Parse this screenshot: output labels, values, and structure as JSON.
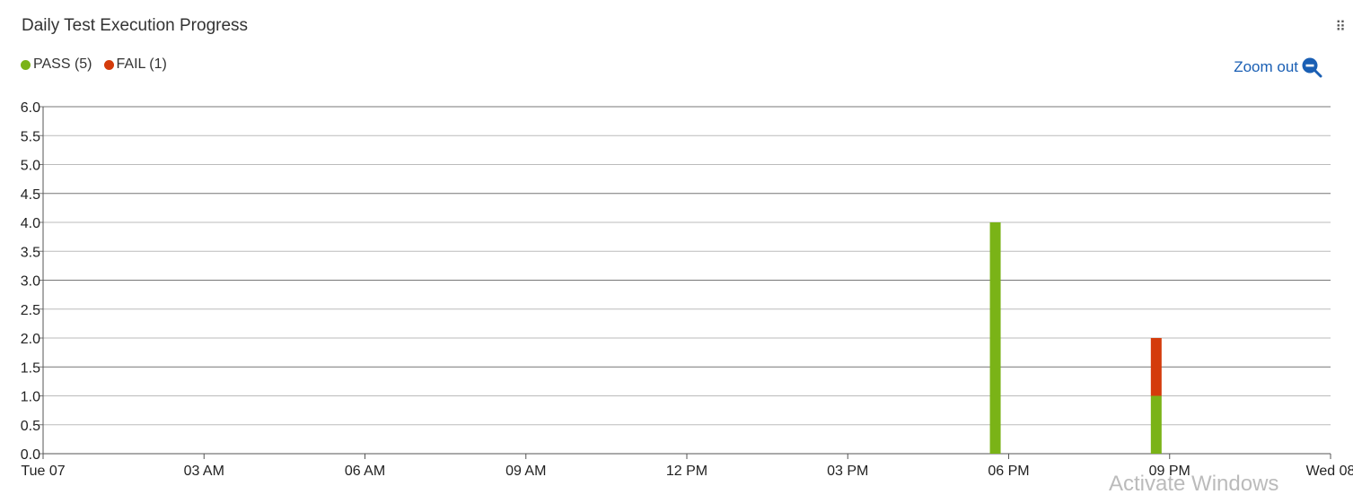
{
  "header": {
    "title": "Daily Test Execution Progress",
    "drag_handle_icon": "drag-handle-icon",
    "zoom_label": "Zoom out",
    "zoom_icon": "zoom-out-icon"
  },
  "legend": [
    {
      "label": "PASS (5)",
      "color": "#7ab317"
    },
    {
      "label": "FAIL (1)",
      "color": "#d43b0b"
    }
  ],
  "watermark": "Activate Windows",
  "chart_data": {
    "type": "bar",
    "stacked": true,
    "x_axis": {
      "type": "time",
      "min": "Tue 07 00:00",
      "max": "Wed 08 00:00",
      "ticks": [
        {
          "label": "Tue 07",
          "hour": 0
        },
        {
          "label": "03 AM",
          "hour": 3
        },
        {
          "label": "06 AM",
          "hour": 6
        },
        {
          "label": "09 AM",
          "hour": 9
        },
        {
          "label": "12 PM",
          "hour": 12
        },
        {
          "label": "03 PM",
          "hour": 15
        },
        {
          "label": "06 PM",
          "hour": 18
        },
        {
          "label": "09 PM",
          "hour": 21
        },
        {
          "label": "Wed 08",
          "hour": 24
        }
      ]
    },
    "y_axis": {
      "ylim": [
        0,
        6
      ],
      "ticks": [
        "0.0",
        "0.5",
        "1.0",
        "1.5",
        "2.0",
        "2.5",
        "3.0",
        "3.5",
        "4.0",
        "4.5",
        "5.0",
        "5.5",
        "6.0"
      ]
    },
    "series": [
      {
        "name": "PASS",
        "color": "#7ab317",
        "points": [
          {
            "hour": 17.75,
            "value": 4
          },
          {
            "hour": 20.75,
            "value": 1
          }
        ]
      },
      {
        "name": "FAIL",
        "color": "#d43b0b",
        "points": [
          {
            "hour": 20.75,
            "value": 1
          }
        ]
      }
    ],
    "grid": true,
    "legend_position": "top-left"
  }
}
